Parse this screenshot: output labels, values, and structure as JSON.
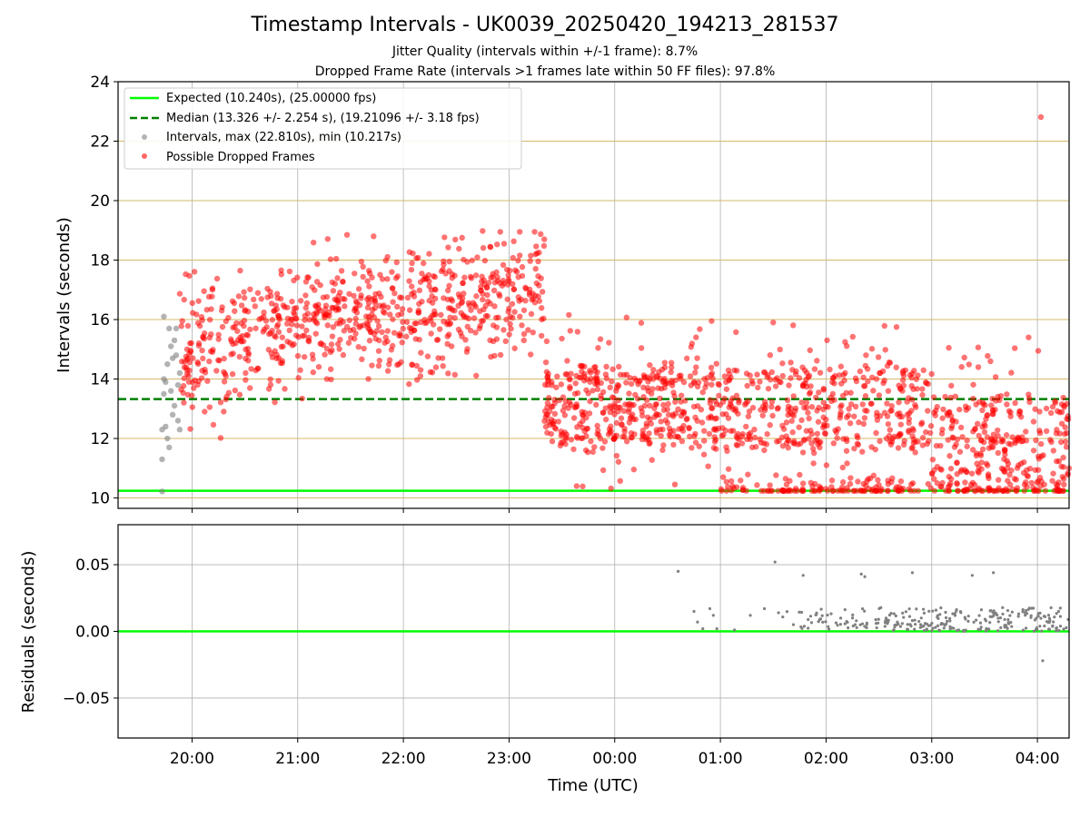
{
  "chart_data": [
    {
      "type": "scatter",
      "title": "Timestamp Intervals - UK0039_20250420_194213_281537",
      "subtitle_1": "Jitter Quality (intervals within +/-1 frame): 8.7%",
      "subtitle_2": "Dropped Frame Rate (intervals >1 frames late within 50 FF files): 97.8%",
      "xlabel": "",
      "ylabel": "Intervals (seconds)",
      "ylim": [
        9.65,
        24
      ],
      "yticks": [
        10,
        12,
        14,
        16,
        18,
        20,
        22,
        24
      ],
      "xlim_hours": [
        19.3,
        28.3
      ],
      "xticks": [
        "20:00",
        "21:00",
        "22:00",
        "23:00",
        "00:00",
        "01:00",
        "02:00",
        "03:00",
        "04:00"
      ],
      "grid": "both",
      "legend_position": "top-left",
      "legend": [
        "Expected (10.240s), (25.00000 fps)",
        "Median (13.326 +/- 2.254 s), (19.21096 +/- 3.18 fps)",
        "Intervals, max (22.810s), min (10.217s)",
        "Possible Dropped Frames"
      ],
      "lines": [
        {
          "name": "Expected",
          "y": 10.24,
          "color": "#00ff00",
          "style": "solid"
        },
        {
          "name": "Median",
          "y": 13.326,
          "color": "#008000",
          "style": "dashed"
        }
      ],
      "series": [
        {
          "name": "Intervals",
          "color": "#808080",
          "points": [
            {
              "t": "19:43",
              "y": 10.22
            },
            {
              "t": "19:43",
              "y": 11.3
            },
            {
              "t": "19:43",
              "y": 12.3
            },
            {
              "t": "19:44",
              "y": 13.5
            },
            {
              "t": "19:44",
              "y": 14.0
            },
            {
              "t": "19:44",
              "y": 16.1
            },
            {
              "t": "19:45",
              "y": 12.4
            },
            {
              "t": "19:45",
              "y": 13.9
            },
            {
              "t": "19:46",
              "y": 14.5
            },
            {
              "t": "19:46",
              "y": 12.0
            },
            {
              "t": "19:47",
              "y": 15.7
            },
            {
              "t": "19:47",
              "y": 11.7
            },
            {
              "t": "19:48",
              "y": 15.1
            },
            {
              "t": "19:48",
              "y": 13.6
            },
            {
              "t": "19:49",
              "y": 14.7
            },
            {
              "t": "19:49",
              "y": 12.8
            },
            {
              "t": "19:50",
              "y": 15.3
            },
            {
              "t": "19:50",
              "y": 13.1
            },
            {
              "t": "19:51",
              "y": 14.8
            },
            {
              "t": "19:51",
              "y": 15.7
            },
            {
              "t": "19:52",
              "y": 12.6
            },
            {
              "t": "19:52",
              "y": 13.8
            },
            {
              "t": "19:53",
              "y": 14.2
            },
            {
              "t": "19:53",
              "y": 12.3
            }
          ]
        },
        {
          "name": "Possible Dropped Frames",
          "color": "#ff0000",
          "regions": [
            {
              "start": "19:53",
              "end": "20:30",
              "center_start": 14.6,
              "center_end": 15.6,
              "spread": 1.1,
              "min": 11.6,
              "max": 18.1
            },
            {
              "start": "20:30",
              "end": "21:45",
              "center_start": 15.6,
              "center_end": 16.4,
              "spread": 1.0,
              "min": 12.6,
              "max": 18.8
            },
            {
              "start": "21:45",
              "end": "23:20",
              "center_start": 16.2,
              "center_end": 16.9,
              "spread": 1.1,
              "min": 13.1,
              "max": 18.95
            },
            {
              "start": "23:20",
              "end": "01:00",
              "band_centers": [
                12.1,
                13.0,
                14.0
              ],
              "min": 10.25,
              "max": 16.2
            },
            {
              "start": "01:00",
              "end": "03:00",
              "band_centers": [
                10.27,
                12.0,
                13.0,
                14.0
              ],
              "min": 10.24,
              "max": 15.9
            },
            {
              "start": "03:00",
              "end": "04:18",
              "band_centers": [
                10.26,
                11.0,
                12.0,
                13.0
              ],
              "min": 10.24,
              "max": 15.4
            }
          ],
          "outliers": [
            {
              "t": "04:02",
              "y": 22.81
            },
            {
              "t": "21:28",
              "y": 18.85
            },
            {
              "t": "22:45",
              "y": 18.98
            },
            {
              "t": "22:55",
              "y": 18.95
            },
            {
              "t": "23:20",
              "y": 18.7
            },
            {
              "t": "01:30",
              "y": 15.9
            },
            {
              "t": "00:55",
              "y": 15.95
            },
            {
              "t": "02:40",
              "y": 15.75
            },
            {
              "t": "03:55",
              "y": 15.4
            }
          ]
        }
      ]
    },
    {
      "type": "scatter",
      "title": "",
      "xlabel": "Time (UTC)",
      "ylabel": "Residuals (seconds)",
      "ylim": [
        -0.08,
        0.08
      ],
      "yticks": [
        -0.05,
        0.0,
        0.05
      ],
      "yticklabels": [
        "−0.05",
        "0.00",
        "0.05"
      ],
      "xlim_hours": [
        19.3,
        28.3
      ],
      "xticks": [
        "20:00",
        "21:00",
        "22:00",
        "23:00",
        "00:00",
        "01:00",
        "02:00",
        "03:00",
        "04:00"
      ],
      "grid": "both",
      "lines": [
        {
          "name": "zero",
          "y": 0.0,
          "color": "#00ff00",
          "style": "solid"
        }
      ],
      "series": [
        {
          "name": "Residuals",
          "color": "#808080",
          "points": [
            {
              "t": "00:36",
              "y": 0.045
            },
            {
              "t": "01:31",
              "y": 0.052
            },
            {
              "t": "01:47",
              "y": 0.042
            },
            {
              "t": "02:20",
              "y": 0.043
            },
            {
              "t": "02:22",
              "y": 0.041
            },
            {
              "t": "02:49",
              "y": 0.044
            },
            {
              "t": "03:23",
              "y": 0.042
            },
            {
              "t": "03:35",
              "y": 0.044
            },
            {
              "t": "04:03",
              "y": -0.022
            },
            {
              "t": "00:45",
              "y": 0.015
            },
            {
              "t": "00:47",
              "y": 0.007
            },
            {
              "t": "00:50",
              "y": 0.002
            },
            {
              "t": "00:54",
              "y": 0.017
            },
            {
              "t": "00:56",
              "y": 0.012
            },
            {
              "t": "00:58",
              "y": 0.002
            },
            {
              "t": "01:08",
              "y": 0.001
            },
            {
              "t": "01:17",
              "y": 0.012
            },
            {
              "t": "01:25",
              "y": 0.017
            },
            {
              "t": "01:33",
              "y": 0.014
            }
          ],
          "band": {
            "start": "01:35",
            "end": "04:18",
            "min": 0.0,
            "max": 0.018
          }
        }
      ]
    }
  ]
}
